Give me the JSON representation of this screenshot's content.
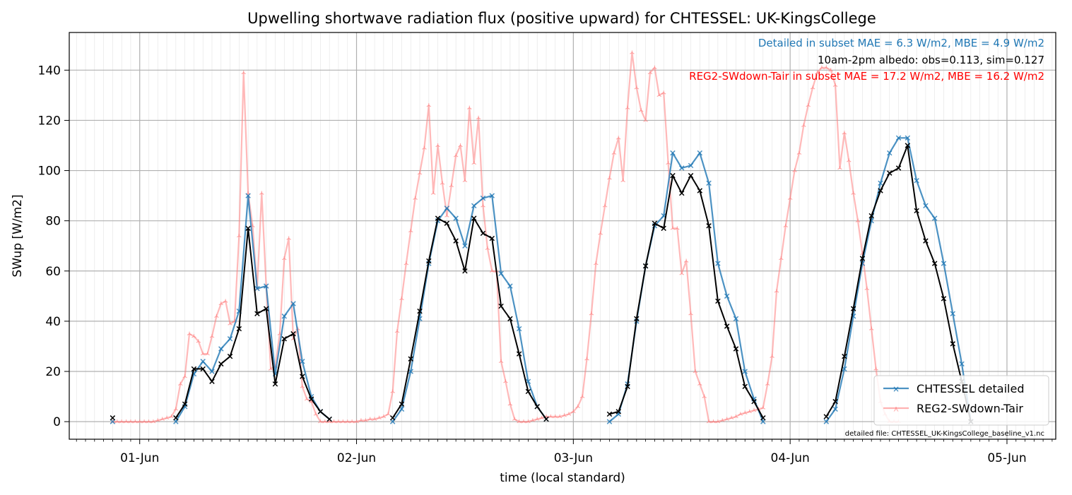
{
  "chart_data": {
    "type": "line",
    "title": "Upwelling shortwave radiation flux (positive upward) for CHTESSEL: UK-KingsCollege",
    "xlabel": "time (local standard)",
    "ylabel": "SWup [W/m2]",
    "x_unit": "hours after 01-Jun 00:00 (local standard)",
    "xlim": [
      -7.8,
      101.4
    ],
    "ylim": [
      -7,
      155
    ],
    "x_ticks": [
      {
        "label": "01-Jun",
        "x": 0
      },
      {
        "label": "02-Jun",
        "x": 24
      },
      {
        "label": "03-Jun",
        "x": 48
      },
      {
        "label": "04-Jun",
        "x": 72
      },
      {
        "label": "05-Jun",
        "x": 96
      }
    ],
    "y_ticks": [
      0,
      20,
      40,
      60,
      80,
      100,
      120,
      140
    ],
    "grid": true,
    "legend_position": "lower-right",
    "annotations": [
      {
        "text": "Detailed in subset MAE = 6.3 W/m2, MBE = 4.9 W/m2",
        "color": "#1f77b4"
      },
      {
        "text": "10am-2pm albedo: obs=0.113, sim=0.127",
        "color": "#000000"
      },
      {
        "text": "REG2-SWdown-Tair in subset MAE = 17.2 W/m2, MBE = 16.2 W/m2",
        "color": "#ff0000"
      }
    ],
    "file_note": "detailed file: CHTESSEL_UK-KingsCollege_baseline_v1.nc",
    "series": [
      {
        "name": "REG2-SWdown-Tair",
        "color": "#ff7f7f",
        "values": [
          [
            -3,
            0
          ],
          [
            -2.5,
            0
          ],
          [
            -2,
            0
          ],
          [
            -1.5,
            0
          ],
          [
            -1,
            0
          ],
          [
            -0.5,
            0
          ],
          [
            0,
            0
          ],
          [
            0.5,
            0
          ],
          [
            1,
            0
          ],
          [
            1.5,
            0
          ],
          [
            2,
            0.5
          ],
          [
            2.5,
            1
          ],
          [
            3,
            1.5
          ],
          [
            3.5,
            2
          ],
          [
            4,
            5
          ],
          [
            4.5,
            15
          ],
          [
            5,
            18
          ],
          [
            5.5,
            35
          ],
          [
            6,
            34
          ],
          [
            6.5,
            32
          ],
          [
            7,
            27
          ],
          [
            7.5,
            27
          ],
          [
            8,
            34
          ],
          [
            8.5,
            42
          ],
          [
            9,
            47
          ],
          [
            9.5,
            48
          ],
          [
            10,
            39
          ],
          [
            10.5,
            40
          ],
          [
            11,
            74
          ],
          [
            11.5,
            139
          ],
          [
            12,
            91
          ],
          [
            12.5,
            78
          ],
          [
            13,
            53
          ],
          [
            13.5,
            91
          ],
          [
            14,
            54
          ],
          [
            14.5,
            21
          ],
          [
            15,
            22
          ],
          [
            15.5,
            35
          ],
          [
            16,
            65
          ],
          [
            16.5,
            73
          ],
          [
            17,
            33
          ],
          [
            17.5,
            37
          ],
          [
            18,
            14
          ],
          [
            18.5,
            9
          ],
          [
            19,
            8
          ],
          [
            19.5,
            3
          ],
          [
            20,
            0
          ],
          [
            20.5,
            0
          ],
          [
            21,
            0
          ],
          [
            21.5,
            0
          ],
          [
            22,
            0
          ],
          [
            22.5,
            0
          ],
          [
            23,
            0
          ],
          [
            23.5,
            0
          ],
          [
            24,
            0
          ],
          [
            24.5,
            0.5
          ],
          [
            25,
            0.5
          ],
          [
            25.5,
            1
          ],
          [
            26,
            1
          ],
          [
            26.5,
            1.5
          ],
          [
            27,
            2
          ],
          [
            27.5,
            3
          ],
          [
            28,
            12
          ],
          [
            28.5,
            36
          ],
          [
            29,
            49
          ],
          [
            29.5,
            63
          ],
          [
            30,
            76
          ],
          [
            30.5,
            89
          ],
          [
            31,
            99
          ],
          [
            31.5,
            109
          ],
          [
            32,
            126
          ],
          [
            32.5,
            91
          ],
          [
            33,
            110
          ],
          [
            33.5,
            95
          ],
          [
            34,
            82
          ],
          [
            34.5,
            94
          ],
          [
            35,
            106
          ],
          [
            35.5,
            110
          ],
          [
            36,
            96
          ],
          [
            36.5,
            125
          ],
          [
            37,
            103
          ],
          [
            37.5,
            121
          ],
          [
            38,
            86
          ],
          [
            38.5,
            69
          ],
          [
            39,
            60
          ],
          [
            39.5,
            60
          ],
          [
            40,
            24
          ],
          [
            40.5,
            16
          ],
          [
            41,
            7
          ],
          [
            41.5,
            1
          ],
          [
            42,
            0
          ],
          [
            42.5,
            0
          ],
          [
            43,
            0
          ],
          [
            43.5,
            0.5
          ],
          [
            44,
            1
          ],
          [
            44.5,
            1.5
          ],
          [
            45,
            2
          ],
          [
            45.5,
            2
          ],
          [
            46,
            2
          ],
          [
            46.5,
            2
          ],
          [
            47,
            2.5
          ],
          [
            47.5,
            3
          ],
          [
            48,
            4
          ],
          [
            48.5,
            6
          ],
          [
            49,
            10
          ],
          [
            49.5,
            25
          ],
          [
            50,
            43
          ],
          [
            50.5,
            63
          ],
          [
            51,
            75
          ],
          [
            51.5,
            86
          ],
          [
            52,
            97
          ],
          [
            52.5,
            107
          ],
          [
            53,
            113
          ],
          [
            53.5,
            96
          ],
          [
            54,
            125
          ],
          [
            54.5,
            147
          ],
          [
            55,
            133
          ],
          [
            55.5,
            124
          ],
          [
            56,
            120
          ],
          [
            56.5,
            139
          ],
          [
            57,
            141
          ],
          [
            57.5,
            130
          ],
          [
            58,
            131
          ],
          [
            58.5,
            103
          ],
          [
            59,
            77
          ],
          [
            59.5,
            77
          ],
          [
            60,
            59
          ],
          [
            60.5,
            64
          ],
          [
            61,
            43
          ],
          [
            61.5,
            20
          ],
          [
            62,
            15
          ],
          [
            62.5,
            10
          ],
          [
            63,
            0
          ],
          [
            63.5,
            0
          ],
          [
            64,
            0
          ],
          [
            64.5,
            0.5
          ],
          [
            65,
            1
          ],
          [
            65.5,
            1.5
          ],
          [
            66,
            2
          ],
          [
            66.5,
            3
          ],
          [
            67,
            3.5
          ],
          [
            67.5,
            4
          ],
          [
            68,
            4.5
          ],
          [
            68.5,
            5
          ],
          [
            69,
            5.5
          ],
          [
            69.5,
            15
          ],
          [
            70,
            26
          ],
          [
            70.5,
            52
          ],
          [
            71,
            65
          ],
          [
            71.5,
            78
          ],
          [
            72,
            89
          ],
          [
            72.5,
            100
          ],
          [
            73,
            107
          ],
          [
            73.5,
            118
          ],
          [
            74,
            126
          ],
          [
            74.5,
            133
          ],
          [
            75,
            139
          ],
          [
            75.5,
            141
          ],
          [
            76,
            141
          ],
          [
            76.5,
            140
          ],
          [
            77,
            134
          ],
          [
            77.5,
            101
          ],
          [
            78,
            115
          ],
          [
            78.5,
            104
          ],
          [
            79,
            91
          ],
          [
            79.5,
            80
          ],
          [
            80,
            67
          ],
          [
            80.5,
            53
          ],
          [
            81,
            37
          ],
          [
            81.5,
            21
          ],
          [
            82,
            8
          ],
          [
            82.5,
            3
          ],
          [
            83,
            0
          ],
          [
            83.5,
            0
          ],
          [
            84,
            0
          ]
        ]
      },
      {
        "name": "CHTESSEL detailed",
        "color": "#1f77b4",
        "values": [
          [
            -3,
            0
          ],
          null,
          [
            4,
            0
          ],
          [
            5,
            6
          ],
          [
            6,
            19
          ],
          [
            7,
            24
          ],
          [
            8,
            20
          ],
          [
            9,
            29
          ],
          [
            10,
            33
          ],
          [
            11,
            44
          ],
          [
            12,
            90
          ],
          [
            13,
            53
          ],
          [
            14,
            54
          ],
          [
            15,
            19
          ],
          [
            16,
            42
          ],
          [
            17,
            47
          ],
          [
            18,
            24
          ],
          [
            19,
            10
          ],
          [
            20,
            4
          ],
          [
            21,
            1
          ],
          null,
          [
            28,
            0
          ],
          [
            29,
            5
          ],
          [
            30,
            20
          ],
          [
            31,
            41
          ],
          [
            32,
            63
          ],
          [
            33,
            80
          ],
          [
            34,
            85
          ],
          [
            35,
            81
          ],
          [
            36,
            70
          ],
          [
            37,
            86
          ],
          [
            38,
            89
          ],
          [
            39,
            90
          ],
          [
            40,
            59
          ],
          [
            41,
            54
          ],
          [
            42,
            37
          ],
          [
            43,
            16
          ],
          [
            44,
            6
          ],
          [
            45,
            1
          ],
          null,
          [
            52,
            0
          ],
          [
            53,
            3
          ],
          [
            54,
            15
          ],
          [
            55,
            40
          ],
          [
            56,
            62
          ],
          [
            57,
            78
          ],
          [
            58,
            82
          ],
          [
            59,
            107
          ],
          [
            60,
            101
          ],
          [
            61,
            102
          ],
          [
            62,
            107
          ],
          [
            63,
            95
          ],
          [
            64,
            63
          ],
          [
            65,
            50
          ],
          [
            66,
            41
          ],
          [
            67,
            20
          ],
          [
            68,
            9
          ],
          [
            69,
            0
          ],
          null,
          [
            76,
            0
          ],
          [
            77,
            5
          ],
          [
            78,
            21
          ],
          [
            79,
            42
          ],
          [
            80,
            63
          ],
          [
            81,
            80
          ],
          [
            82,
            95
          ],
          [
            83,
            107
          ],
          [
            84,
            113
          ],
          [
            85,
            113
          ],
          [
            86,
            96
          ],
          [
            87,
            86
          ],
          [
            88,
            81
          ],
          [
            89,
            63
          ],
          [
            90,
            43
          ],
          [
            91,
            23
          ],
          [
            92,
            0
          ]
        ]
      },
      {
        "name": "",
        "color": "#000000",
        "values": [
          [
            -3,
            1.5
          ],
          null,
          [
            4,
            1.5
          ],
          [
            5,
            7
          ],
          [
            6,
            21
          ],
          [
            7,
            21
          ],
          [
            8,
            16
          ],
          [
            9,
            23
          ],
          [
            10,
            26
          ],
          [
            11,
            37
          ],
          [
            12,
            77
          ],
          [
            13,
            43
          ],
          [
            14,
            45
          ],
          [
            15,
            15
          ],
          [
            16,
            33
          ],
          [
            17,
            35
          ],
          [
            18,
            18
          ],
          [
            19,
            9
          ],
          [
            20,
            4
          ],
          [
            21,
            1
          ],
          null,
          [
            28,
            1.5
          ],
          [
            29,
            7
          ],
          [
            30,
            25
          ],
          [
            31,
            44
          ],
          [
            32,
            64
          ],
          [
            33,
            81
          ],
          [
            34,
            79
          ],
          [
            35,
            72
          ],
          [
            36,
            60
          ],
          [
            37,
            81
          ],
          [
            38,
            75
          ],
          [
            39,
            73
          ],
          [
            40,
            46
          ],
          [
            41,
            41
          ],
          [
            42,
            27
          ],
          [
            43,
            12
          ],
          [
            44,
            6
          ],
          [
            45,
            1
          ],
          null,
          [
            52,
            3
          ],
          [
            53,
            4
          ],
          [
            54,
            14
          ],
          [
            55,
            41
          ],
          [
            56,
            62
          ],
          [
            57,
            79
          ],
          [
            58,
            77
          ],
          [
            59,
            98
          ],
          [
            60,
            91
          ],
          [
            61,
            98
          ],
          [
            62,
            92
          ],
          [
            63,
            78
          ],
          [
            64,
            48
          ],
          [
            65,
            38
          ],
          [
            66,
            29
          ],
          [
            67,
            14
          ],
          [
            68,
            8
          ],
          [
            69,
            1.5
          ],
          null,
          [
            76,
            2
          ],
          [
            77,
            8
          ],
          [
            78,
            26
          ],
          [
            79,
            45
          ],
          [
            80,
            65
          ],
          [
            81,
            82
          ],
          [
            82,
            92
          ],
          [
            83,
            99
          ],
          [
            84,
            101
          ],
          [
            85,
            110
          ],
          [
            86,
            84
          ],
          [
            87,
            72
          ],
          [
            88,
            63
          ],
          [
            89,
            49
          ],
          [
            90,
            31
          ],
          [
            91,
            16
          ],
          [
            92,
            0
          ]
        ]
      }
    ]
  }
}
